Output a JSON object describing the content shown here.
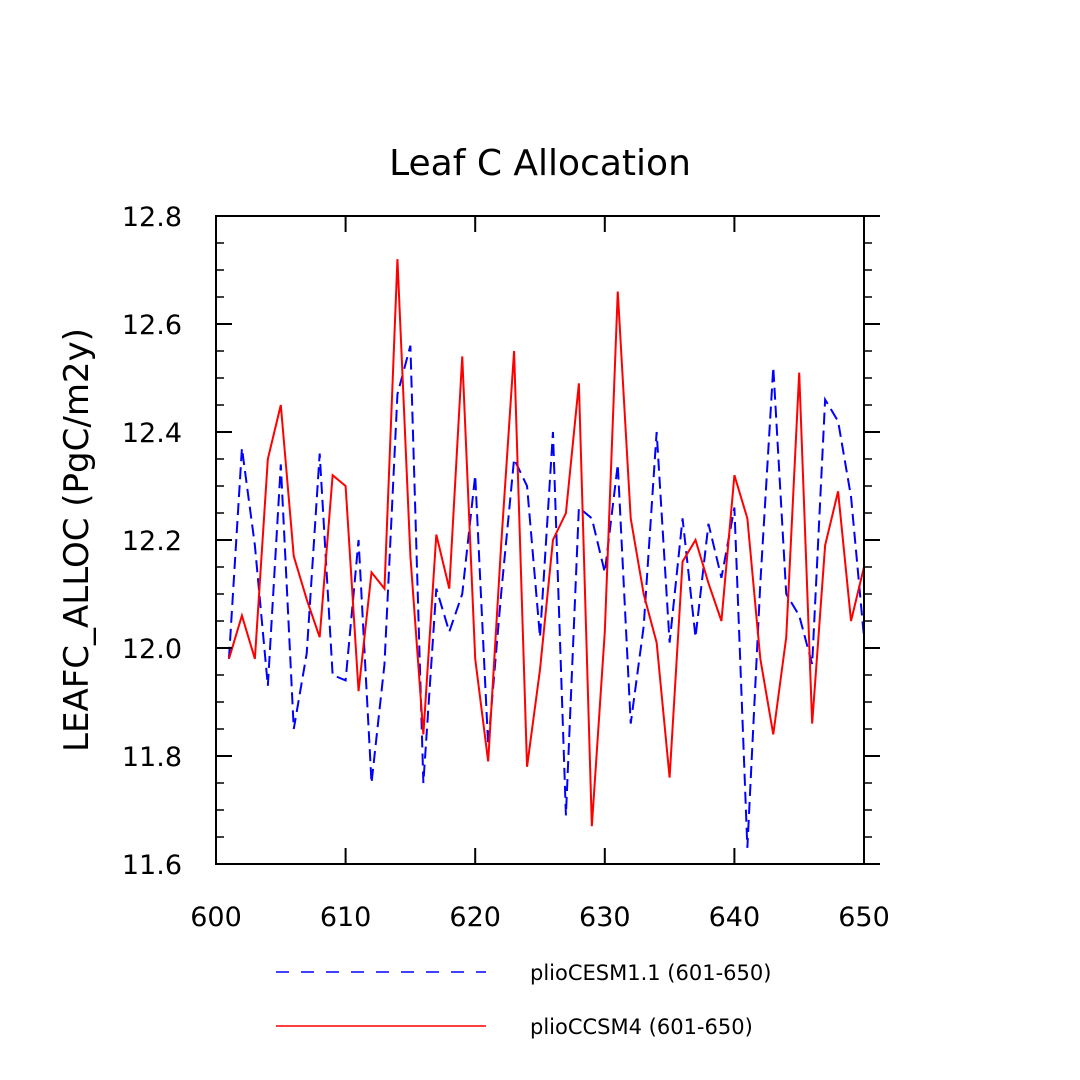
{
  "chart_data": {
    "type": "line",
    "title": "Leaf C Allocation",
    "xlabel": "",
    "ylabel": "LEAFC_ALLOC  (PgC/m2y)",
    "xlim": [
      600,
      650
    ],
    "ylim": [
      11.6,
      12.8
    ],
    "x_ticks": [
      600,
      610,
      620,
      630,
      640,
      650
    ],
    "x_tick_labels": [
      "600",
      "610",
      "620",
      "630",
      "640",
      "650"
    ],
    "y_ticks": [
      11.6,
      11.8,
      12.0,
      12.2,
      12.4,
      12.6,
      12.8
    ],
    "y_tick_labels": [
      "11.6",
      "11.8",
      "12.0",
      "12.2",
      "12.4",
      "12.6",
      "12.8"
    ],
    "grid": false,
    "legend_position": "bottom",
    "x": [
      601,
      602,
      603,
      604,
      605,
      606,
      607,
      608,
      609,
      610,
      611,
      612,
      613,
      614,
      615,
      616,
      617,
      618,
      619,
      620,
      621,
      622,
      623,
      624,
      625,
      626,
      627,
      628,
      629,
      630,
      631,
      632,
      633,
      634,
      635,
      636,
      637,
      638,
      639,
      640,
      641,
      642,
      643,
      644,
      645,
      646,
      647,
      648,
      649,
      650
    ],
    "series": [
      {
        "name": "plioCESM1.1 (601-650)",
        "color": "#0000ff",
        "dash": "dashed",
        "values": [
          11.98,
          12.37,
          12.19,
          11.93,
          12.34,
          11.85,
          11.99,
          12.36,
          11.95,
          11.94,
          12.2,
          11.75,
          11.97,
          12.47,
          12.56,
          11.75,
          12.11,
          12.03,
          12.1,
          12.32,
          11.82,
          12.1,
          12.35,
          12.3,
          12.02,
          12.4,
          11.69,
          12.26,
          12.24,
          12.14,
          12.34,
          11.86,
          12.04,
          12.4,
          12.01,
          12.24,
          12.02,
          12.23,
          12.13,
          12.26,
          11.63,
          12.12,
          12.52,
          12.1,
          12.06,
          11.97,
          12.46,
          12.42,
          12.28,
          12.02
        ]
      },
      {
        "name": "plioCCSM4 (601-650)",
        "color": "#ff0000",
        "dash": "solid",
        "values": [
          11.98,
          12.06,
          11.98,
          12.35,
          12.45,
          12.17,
          12.09,
          12.02,
          12.32,
          12.3,
          11.92,
          12.14,
          12.11,
          12.72,
          12.17,
          11.84,
          12.21,
          12.11,
          12.54,
          11.98,
          11.79,
          12.19,
          12.55,
          11.78,
          11.96,
          12.2,
          12.25,
          12.49,
          11.67,
          12.03,
          12.66,
          12.24,
          12.1,
          12.01,
          11.76,
          12.16,
          12.2,
          12.12,
          12.05,
          12.32,
          12.24,
          11.98,
          11.84,
          12.02,
          12.51,
          11.86,
          12.19,
          12.29,
          12.05,
          12.15
        ]
      }
    ]
  }
}
